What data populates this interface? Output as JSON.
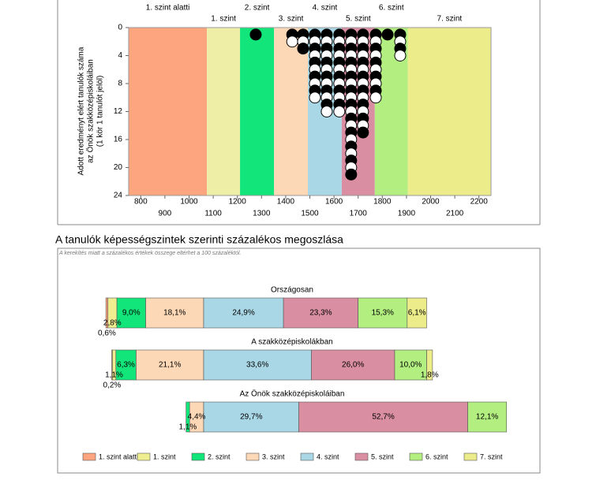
{
  "chart_data": [
    {
      "type": "dot",
      "y_label": [
        "Adott eredményt elért tanulók száma",
        "az Önök szakközépiskoláiban",
        "(1 kör 1 tanulót jelöl)"
      ],
      "xlim": [
        750,
        2250
      ],
      "xticks": [
        800,
        900,
        1000,
        1100,
        1200,
        1300,
        1400,
        1500,
        1600,
        1700,
        1800,
        1900,
        2000,
        2100,
        2200
      ],
      "ylim": [
        0,
        24
      ],
      "yticks": [
        0,
        4,
        8,
        12,
        16,
        20,
        24
      ],
      "y_inverted": true,
      "levels": [
        {
          "name": "1. szint alatti",
          "color": "#fca57e"
        },
        {
          "name": "1. szint",
          "color": "#eeeea6"
        },
        {
          "name": "2. szint",
          "color": "#12e67a"
        },
        {
          "name": "3. szint",
          "color": "#fdd8b6"
        },
        {
          "name": "4. szint",
          "color": "#a9d7e6"
        },
        {
          "name": "5. szint",
          "color": "#d98ea2"
        },
        {
          "name": "6. szint",
          "color": "#b3ee80"
        },
        {
          "name": "7. szint",
          "color": "#ecec8a"
        }
      ],
      "level_edges": [
        1074,
        1211,
        1352,
        1492,
        1632,
        1769,
        1906
      ],
      "x": [
        1276,
        1427,
        1472,
        1521,
        1570,
        1622,
        1671,
        1720,
        1773,
        1822,
        1874
      ],
      "values": [
        1,
        2,
        3,
        10,
        12,
        12,
        21,
        15,
        10,
        1,
        4
      ]
    },
    {
      "type": "diverging-bar",
      "title": "A tanulók képességszintek szerinti százalékos megoszlása",
      "note": "A kerekítés miatt a százalékos értékek összege eltérhet a 100 százaléktól.",
      "categories": [
        "Országosan",
        "A szakközépiskolákban",
        "Az Önök szakközépiskoláiban"
      ],
      "series": [
        {
          "name": "1. szint alatti",
          "color": "#fca57e",
          "values": [
            0.6,
            0.2,
            null
          ],
          "value_labels": [
            "0,6%",
            "0,2%",
            null
          ]
        },
        {
          "name": "1. szint",
          "color": "#eeee90",
          "values": [
            2.8,
            1.1,
            null
          ],
          "value_labels": [
            "2,8%",
            "1,1%",
            null
          ]
        },
        {
          "name": "2. szint",
          "color": "#12e67a",
          "values": [
            9.0,
            6.3,
            1.1
          ],
          "value_labels": [
            "9,0%",
            "6,3%",
            "1,1%"
          ]
        },
        {
          "name": "3. szint",
          "color": "#fdd8b6",
          "values": [
            18.1,
            21.1,
            4.4
          ],
          "value_labels": [
            "18,1%",
            "21,1%",
            "4,4%"
          ]
        },
        {
          "name": "4. szint",
          "color": "#a9d7e6",
          "values": [
            24.9,
            33.6,
            29.7
          ],
          "value_labels": [
            "24,9%",
            "33,6%",
            "29,7%"
          ]
        },
        {
          "name": "5. szint",
          "color": "#d98ea2",
          "values": [
            23.3,
            26.0,
            52.7
          ],
          "value_labels": [
            "23,3%",
            "26,0%",
            "52,7%"
          ]
        },
        {
          "name": "6. szint",
          "color": "#b3ee80",
          "values": [
            15.3,
            10.0,
            12.1
          ],
          "value_labels": [
            "15,3%",
            "10,0%",
            "12,1%"
          ]
        },
        {
          "name": "7. szint",
          "color": "#ecec8a",
          "values": [
            6.1,
            1.8,
            null
          ],
          "value_labels": [
            "6,1%",
            "1,8%",
            null
          ]
        }
      ]
    }
  ]
}
